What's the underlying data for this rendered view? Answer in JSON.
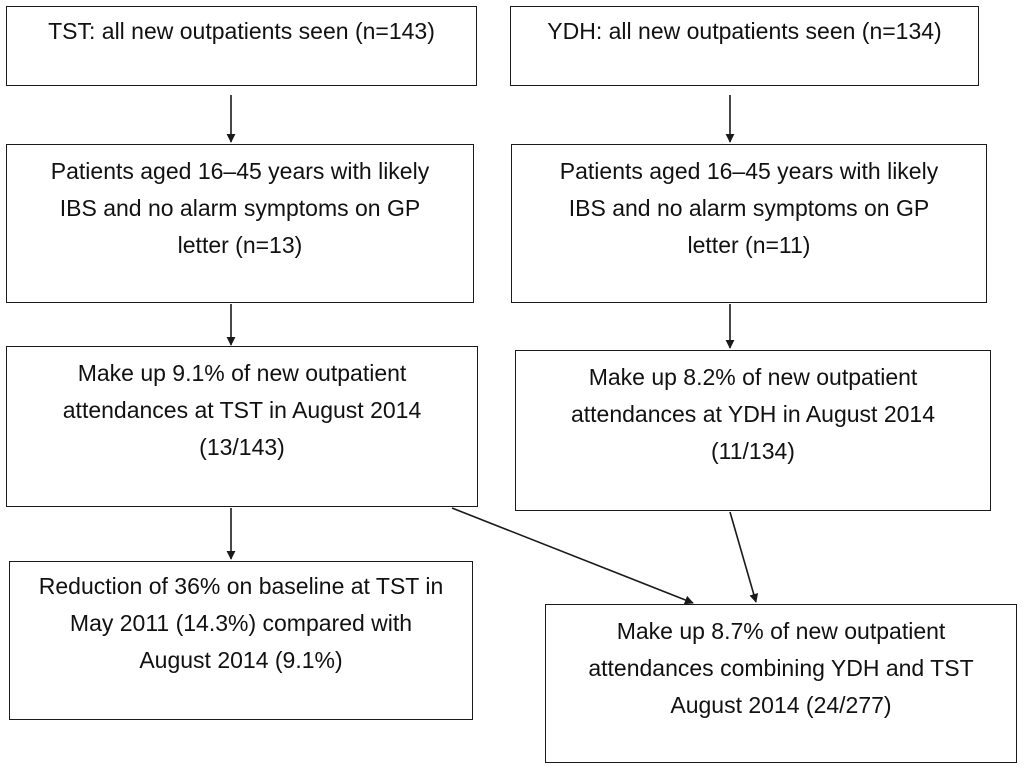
{
  "boxes": {
    "tst_all": "TST: all new outpatients seen (n=143)",
    "ydh_all": "YDH: all new outpatients seen (n=134)",
    "tst_ibs": "Patients aged 16–45 years with likely\nIBS and no alarm symptoms on GP\nletter (n=13)",
    "ydh_ibs": "Patients aged 16–45 years with likely\nIBS and no alarm symptoms on GP\nletter (n=11)",
    "tst_pct": "Make up 9.1% of new outpatient\nattendances at TST in August 2014\n(13/143)",
    "ydh_pct": "Make up 8.2% of new outpatient\nattendances at YDH in August 2014\n(11/134)",
    "tst_reduction": "Reduction of 36% on baseline at TST in\nMay 2011 (14.3%) compared with\nAugust  2014 (9.1%)",
    "combined": "Make up 8.7% of new outpatient\nattendances combining YDH and TST\nAugust  2014 (24/277)"
  },
  "colors": {
    "border": "#1a1a1a",
    "arrow": "#1a1a1a",
    "text": "#111111"
  }
}
